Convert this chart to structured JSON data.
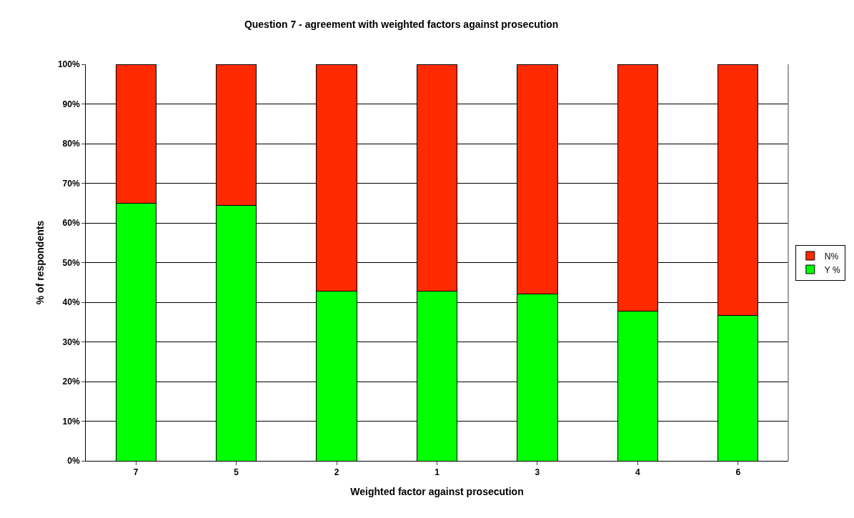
{
  "chart_data": {
    "type": "bar",
    "stacked": true,
    "title": "Question 7 - agreement with weighted factors against prosecution",
    "xlabel": "Weighted factor against prosecution",
    "ylabel": "% of respondents",
    "categories": [
      "7",
      "5",
      "2",
      "1",
      "3",
      "4",
      "6"
    ],
    "series": [
      {
        "name": "Y %",
        "color": "#00ff00",
        "values": [
          65,
          64.5,
          42.8,
          42.8,
          42,
          37.8,
          36.7
        ]
      },
      {
        "name": "N%",
        "color": "#ff2a00",
        "values": [
          35,
          35.5,
          57.2,
          57.2,
          58,
          62.2,
          63.3
        ]
      }
    ],
    "ylim": [
      0,
      100
    ],
    "yticks": [
      {
        "value": 0,
        "label": "0%"
      },
      {
        "value": 10,
        "label": "10%"
      },
      {
        "value": 20,
        "label": "20%"
      },
      {
        "value": 30,
        "label": "30%"
      },
      {
        "value": 40,
        "label": "40%"
      },
      {
        "value": 50,
        "label": "50%"
      },
      {
        "value": 60,
        "label": "60%"
      },
      {
        "value": 70,
        "label": "70%"
      },
      {
        "value": 80,
        "label": "80%"
      },
      {
        "value": 90,
        "label": "90%"
      },
      {
        "value": 100,
        "label": "100%"
      }
    ],
    "grid": "y",
    "legend": "right"
  }
}
